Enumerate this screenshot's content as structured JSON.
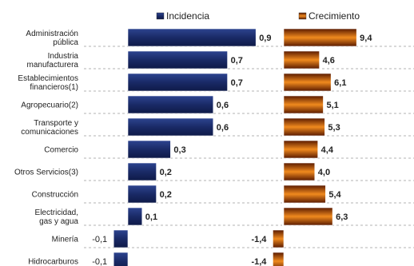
{
  "chart_data": {
    "type": "bar",
    "orientation": "horizontal",
    "layout": "two-panel",
    "grid": true,
    "legend_position": "top",
    "categories": [
      [
        "Administración",
        "pública"
      ],
      [
        "Industria",
        "manufacturera"
      ],
      [
        "Establecimientos",
        "financieros(1)"
      ],
      [
        "Agropecuario(2)"
      ],
      [
        "Transporte y",
        "comunicaciones"
      ],
      [
        "Comercio"
      ],
      [
        "Otros Servicios(3)"
      ],
      [
        "Construcción"
      ],
      [
        "Electricidad,",
        "gas y agua"
      ],
      [
        "Minería"
      ],
      [
        "Hidrocarburos"
      ]
    ],
    "series": [
      {
        "name": "Incidencia",
        "color": "#1f2f6e",
        "values": [
          0.9,
          0.7,
          0.7,
          0.6,
          0.6,
          0.3,
          0.2,
          0.2,
          0.1,
          -0.1,
          -0.1
        ],
        "labels": [
          "0,9",
          "0,7",
          "0,7",
          "0,6",
          "0,6",
          "0,3",
          "0,2",
          "0,2",
          "0,1",
          "-0,1",
          "-0,1"
        ]
      },
      {
        "name": "Crecimiento",
        "color": "#c8500e",
        "values": [
          9.4,
          4.6,
          6.1,
          5.1,
          5.3,
          4.4,
          4.0,
          5.4,
          6.3,
          -1.4,
          -1.4
        ],
        "labels": [
          "9,4",
          "4,6",
          "6,1",
          "5,1",
          "5,3",
          "4,4",
          "4,0",
          "5,4",
          "6,3",
          "-1,4",
          "-1,4"
        ]
      }
    ]
  }
}
